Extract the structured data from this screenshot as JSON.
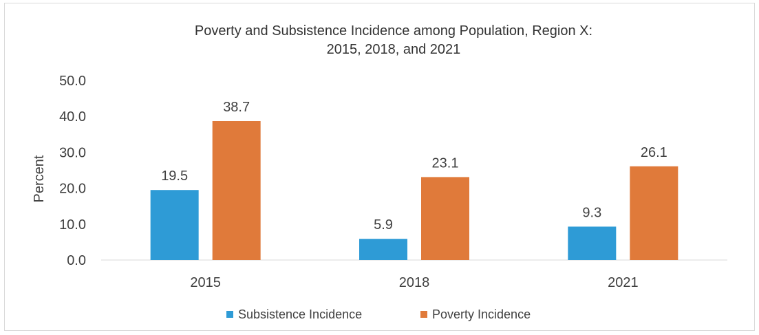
{
  "chart_data": {
    "type": "bar",
    "title": "Poverty and Subsistence Incidence among Population, Region X:",
    "subtitle": "2015, 2018, and 2021",
    "xlabel": "",
    "ylabel": "Percent",
    "ylim": [
      0,
      50
    ],
    "yticks": [
      "0.0",
      "10.0",
      "20.0",
      "30.0",
      "40.0",
      "50.0"
    ],
    "categories": [
      "2015",
      "2018",
      "2021"
    ],
    "series": [
      {
        "name": "Subsistence Incidence",
        "color": "#2e9bd6",
        "values": [
          19.5,
          5.9,
          9.3
        ],
        "labels": [
          "19.5",
          "5.9",
          "9.3"
        ]
      },
      {
        "name": "Poverty Incidence",
        "color": "#e07a3a",
        "values": [
          38.7,
          23.1,
          26.1
        ],
        "labels": [
          "38.7",
          "23.1",
          "26.1"
        ]
      }
    ],
    "grid": false,
    "legend": "bottom"
  }
}
